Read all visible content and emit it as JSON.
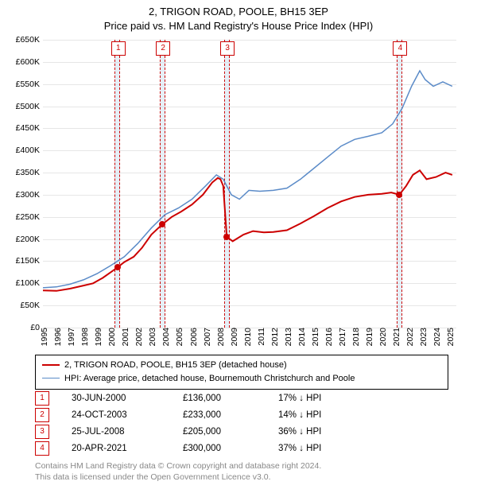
{
  "title_line1": "2, TRIGON ROAD, POOLE, BH15 3EP",
  "title_line2": "Price paid vs. HM Land Registry's House Price Index (HPI)",
  "chart": {
    "type": "line",
    "background_color": "#ffffff",
    "grid_color": "#e6e6e6",
    "x_min_year": 1995,
    "x_max_year": 2025.5,
    "x_ticks": [
      1995,
      1996,
      1997,
      1998,
      1999,
      2000,
      2001,
      2002,
      2003,
      2004,
      2005,
      2006,
      2007,
      2008,
      2009,
      2010,
      2011,
      2012,
      2013,
      2014,
      2015,
      2016,
      2017,
      2018,
      2019,
      2020,
      2021,
      2022,
      2023,
      2024,
      2025
    ],
    "ylim": [
      0,
      650000
    ],
    "ytick_step": 50000,
    "ytick_labels": [
      "£0",
      "£50K",
      "£100K",
      "£150K",
      "£200K",
      "£250K",
      "£300K",
      "£350K",
      "£400K",
      "£450K",
      "£500K",
      "£550K",
      "£600K",
      "£650K"
    ],
    "series": [
      {
        "id": "price_paid",
        "label": "2, TRIGON ROAD, POOLE, BH15 3EP (detached house)",
        "color": "#cc0000",
        "line_width": 2,
        "points": [
          [
            1995.0,
            84000
          ],
          [
            1996.0,
            83000
          ],
          [
            1997.0,
            88000
          ],
          [
            1998.0,
            95000
          ],
          [
            1998.7,
            100000
          ],
          [
            1999.4,
            112000
          ],
          [
            2000.0,
            125000
          ],
          [
            2000.5,
            136000
          ],
          [
            2001.0,
            148000
          ],
          [
            2001.7,
            160000
          ],
          [
            2002.3,
            180000
          ],
          [
            2003.0,
            210000
          ],
          [
            2003.8,
            233000
          ],
          [
            2004.5,
            250000
          ],
          [
            2005.2,
            262000
          ],
          [
            2006.0,
            278000
          ],
          [
            2006.8,
            300000
          ],
          [
            2007.5,
            328000
          ],
          [
            2007.9,
            338000
          ],
          [
            2008.1,
            335000
          ],
          [
            2008.3,
            320000
          ],
          [
            2008.56,
            205000
          ],
          [
            2009.0,
            195000
          ],
          [
            2009.8,
            210000
          ],
          [
            2010.5,
            218000
          ],
          [
            2011.3,
            215000
          ],
          [
            2012.0,
            216000
          ],
          [
            2013.0,
            220000
          ],
          [
            2014.0,
            235000
          ],
          [
            2015.0,
            252000
          ],
          [
            2016.0,
            270000
          ],
          [
            2017.0,
            285000
          ],
          [
            2018.0,
            295000
          ],
          [
            2019.0,
            300000
          ],
          [
            2020.0,
            302000
          ],
          [
            2020.7,
            305000
          ],
          [
            2021.3,
            300000
          ],
          [
            2021.8,
            320000
          ],
          [
            2022.3,
            345000
          ],
          [
            2022.8,
            355000
          ],
          [
            2023.3,
            335000
          ],
          [
            2024.0,
            340000
          ],
          [
            2024.7,
            350000
          ],
          [
            2025.2,
            345000
          ]
        ]
      },
      {
        "id": "hpi",
        "label": "HPI: Average price, detached house, Bournemouth Christchurch and Poole",
        "color": "#5b8bc8",
        "line_width": 1.5,
        "points": [
          [
            1995.0,
            90000
          ],
          [
            1996.0,
            92000
          ],
          [
            1997.0,
            98000
          ],
          [
            1998.0,
            108000
          ],
          [
            1999.0,
            122000
          ],
          [
            2000.0,
            140000
          ],
          [
            2001.0,
            160000
          ],
          [
            2002.0,
            190000
          ],
          [
            2003.0,
            225000
          ],
          [
            2004.0,
            255000
          ],
          [
            2005.0,
            270000
          ],
          [
            2006.0,
            290000
          ],
          [
            2007.0,
            320000
          ],
          [
            2007.8,
            345000
          ],
          [
            2008.3,
            335000
          ],
          [
            2008.9,
            300000
          ],
          [
            2009.5,
            290000
          ],
          [
            2010.2,
            310000
          ],
          [
            2011.0,
            308000
          ],
          [
            2012.0,
            310000
          ],
          [
            2013.0,
            315000
          ],
          [
            2014.0,
            335000
          ],
          [
            2015.0,
            360000
          ],
          [
            2016.0,
            385000
          ],
          [
            2017.0,
            410000
          ],
          [
            2018.0,
            425000
          ],
          [
            2019.0,
            432000
          ],
          [
            2020.0,
            440000
          ],
          [
            2020.8,
            460000
          ],
          [
            2021.5,
            495000
          ],
          [
            2022.2,
            545000
          ],
          [
            2022.8,
            580000
          ],
          [
            2023.2,
            560000
          ],
          [
            2023.8,
            545000
          ],
          [
            2024.5,
            555000
          ],
          [
            2025.2,
            545000
          ]
        ]
      }
    ],
    "markers": [
      {
        "n": "1",
        "year": 2000.5,
        "price": 136000,
        "band_width_years": 0.4
      },
      {
        "n": "2",
        "year": 2003.81,
        "price": 233000,
        "band_width_years": 0.4
      },
      {
        "n": "3",
        "year": 2008.56,
        "price": 205000,
        "band_width_years": 0.4
      },
      {
        "n": "4",
        "year": 2021.3,
        "price": 300000,
        "band_width_years": 0.4
      }
    ],
    "marker_band_color": "rgba(210,225,240,0.55)",
    "marker_border_color": "#cc0000",
    "dot_color": "#cc0000"
  },
  "legend": {
    "items": [
      {
        "color": "#cc0000",
        "width": 2,
        "label": "2, TRIGON ROAD, POOLE, BH15 3EP (detached house)"
      },
      {
        "color": "#5b8bc8",
        "width": 1.5,
        "label": "HPI: Average price, detached house, Bournemouth Christchurch and Poole"
      }
    ]
  },
  "sales": [
    {
      "n": "1",
      "date": "30-JUN-2000",
      "price": "£136,000",
      "diff": "17% ↓ HPI"
    },
    {
      "n": "2",
      "date": "24-OCT-2003",
      "price": "£233,000",
      "diff": "14% ↓ HPI"
    },
    {
      "n": "3",
      "date": "25-JUL-2008",
      "price": "£205,000",
      "diff": "36% ↓ HPI"
    },
    {
      "n": "4",
      "date": "20-APR-2021",
      "price": "£300,000",
      "diff": "37% ↓ HPI"
    }
  ],
  "footnote_line1": "Contains HM Land Registry data © Crown copyright and database right 2024.",
  "footnote_line2": "This data is licensed under the Open Government Licence v3.0."
}
